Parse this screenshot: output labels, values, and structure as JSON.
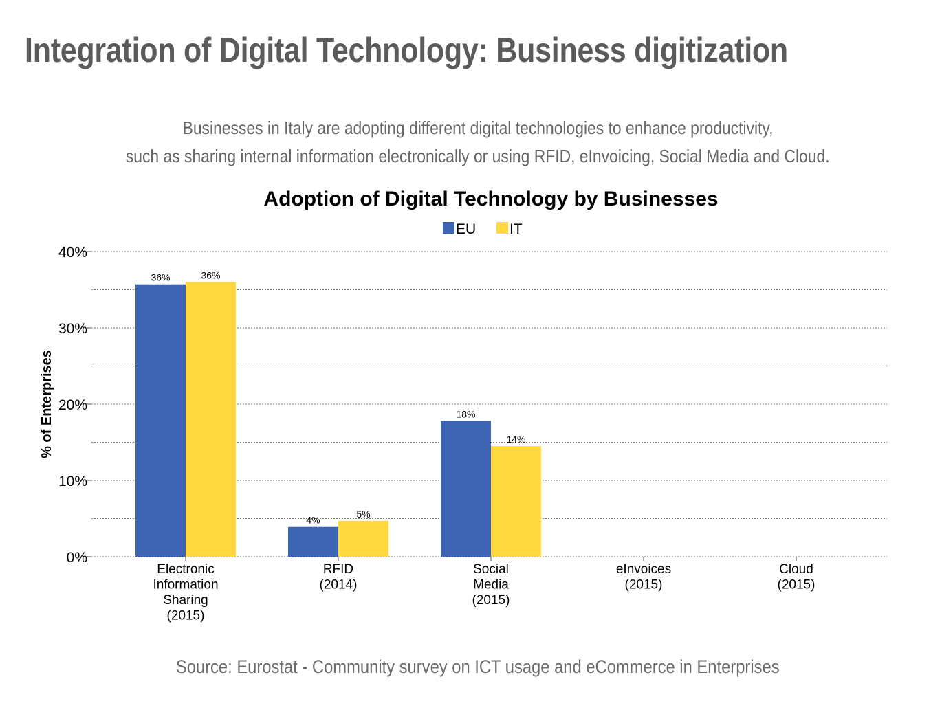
{
  "page": {
    "title": "Integration of Digital Technology: Business digitization",
    "subtitle_lines": [
      "Businesses in Italy are adopting different digital technologies to enhance productivity,",
      "such as sharing internal information electronically or using RFID, eInvoicing, Social Media and Cloud."
    ],
    "source": "Source: Eurostat - Community survey on ICT usage and eCommerce in Enterprises"
  },
  "chart_data": {
    "type": "bar",
    "title": "Adoption of Digital Technology by Businesses",
    "xlabel": "",
    "ylabel": "% of Enterprises",
    "ylim": [
      0,
      40
    ],
    "yticks": [
      0,
      10,
      20,
      30,
      40
    ],
    "ytick_labels": [
      "0%",
      "10%",
      "20%",
      "30%",
      "40%"
    ],
    "grid": "dotted horizontal lines every 5%",
    "legend_position": "top-center",
    "categories": [
      [
        "Electronic",
        "Information",
        "Sharing",
        "(2015)"
      ],
      [
        "RFID",
        "(2014)"
      ],
      [
        "Social",
        "Media",
        "(2015)"
      ],
      [
        "eInvoices",
        "(2015)"
      ],
      [
        "Cloud",
        "(2015)"
      ]
    ],
    "series": [
      {
        "name": "EU",
        "color": "#3d65b4",
        "values": [
          35.7,
          3.9,
          17.8,
          null,
          null
        ],
        "labels": [
          "36%",
          "4%",
          "18%",
          "",
          ""
        ]
      },
      {
        "name": "IT",
        "color": "#ffd93d",
        "values": [
          36.0,
          4.7,
          14.5,
          null,
          null
        ],
        "labels": [
          "36%",
          "5%",
          "14%",
          "",
          ""
        ]
      }
    ]
  }
}
